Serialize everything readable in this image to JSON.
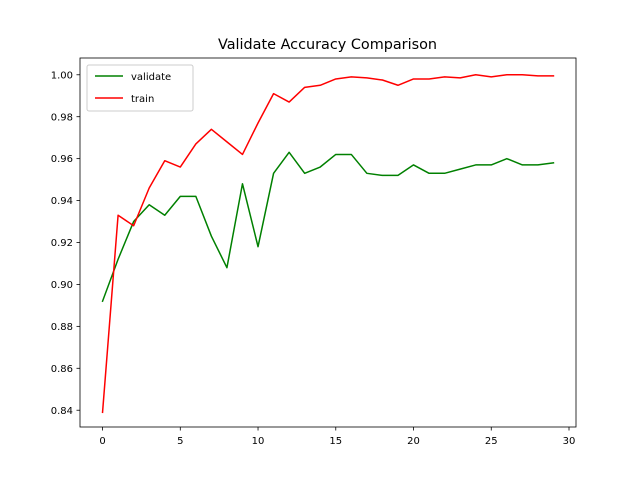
{
  "chart_data": {
    "type": "line",
    "title": "Validate Accuracy Comparison",
    "xlabel": "",
    "ylabel": "",
    "xlim": [
      -1.45,
      30.45
    ],
    "ylim": [
      0.832,
      1.008
    ],
    "xticks": [
      0,
      5,
      10,
      15,
      20,
      25,
      30
    ],
    "xtick_labels": [
      "0",
      "5",
      "10",
      "15",
      "20",
      "25",
      "30"
    ],
    "yticks": [
      0.84,
      0.86,
      0.88,
      0.9,
      0.92,
      0.94,
      0.96,
      0.98,
      1.0
    ],
    "ytick_labels": [
      "0.84",
      "0.86",
      "0.88",
      "0.90",
      "0.92",
      "0.94",
      "0.96",
      "0.98",
      "1.00"
    ],
    "grid": false,
    "legend_position": "top-left",
    "x": [
      0,
      1,
      2,
      3,
      4,
      5,
      6,
      7,
      8,
      9,
      10,
      11,
      12,
      13,
      14,
      15,
      16,
      17,
      18,
      19,
      20,
      21,
      22,
      23,
      24,
      25,
      26,
      27,
      28,
      29
    ],
    "series": [
      {
        "name": "validate",
        "color": "#008000",
        "values": [
          0.892,
          0.912,
          0.93,
          0.938,
          0.933,
          0.942,
          0.942,
          0.923,
          0.908,
          0.948,
          0.918,
          0.953,
          0.963,
          0.953,
          0.956,
          0.962,
          0.962,
          0.953,
          0.952,
          0.952,
          0.957,
          0.953,
          0.953,
          0.955,
          0.957,
          0.957,
          0.96,
          0.957,
          0.957,
          0.958
        ]
      },
      {
        "name": "train",
        "color": "#ff0000",
        "values": [
          0.839,
          0.933,
          0.928,
          0.946,
          0.959,
          0.956,
          0.967,
          0.974,
          0.968,
          0.962,
          0.977,
          0.991,
          0.987,
          0.994,
          0.995,
          0.998,
          0.999,
          0.9985,
          0.9975,
          0.995,
          0.998,
          0.998,
          0.999,
          0.9985,
          1.0,
          0.999,
          1.0,
          1.0,
          0.9995,
          0.9995
        ]
      }
    ]
  }
}
